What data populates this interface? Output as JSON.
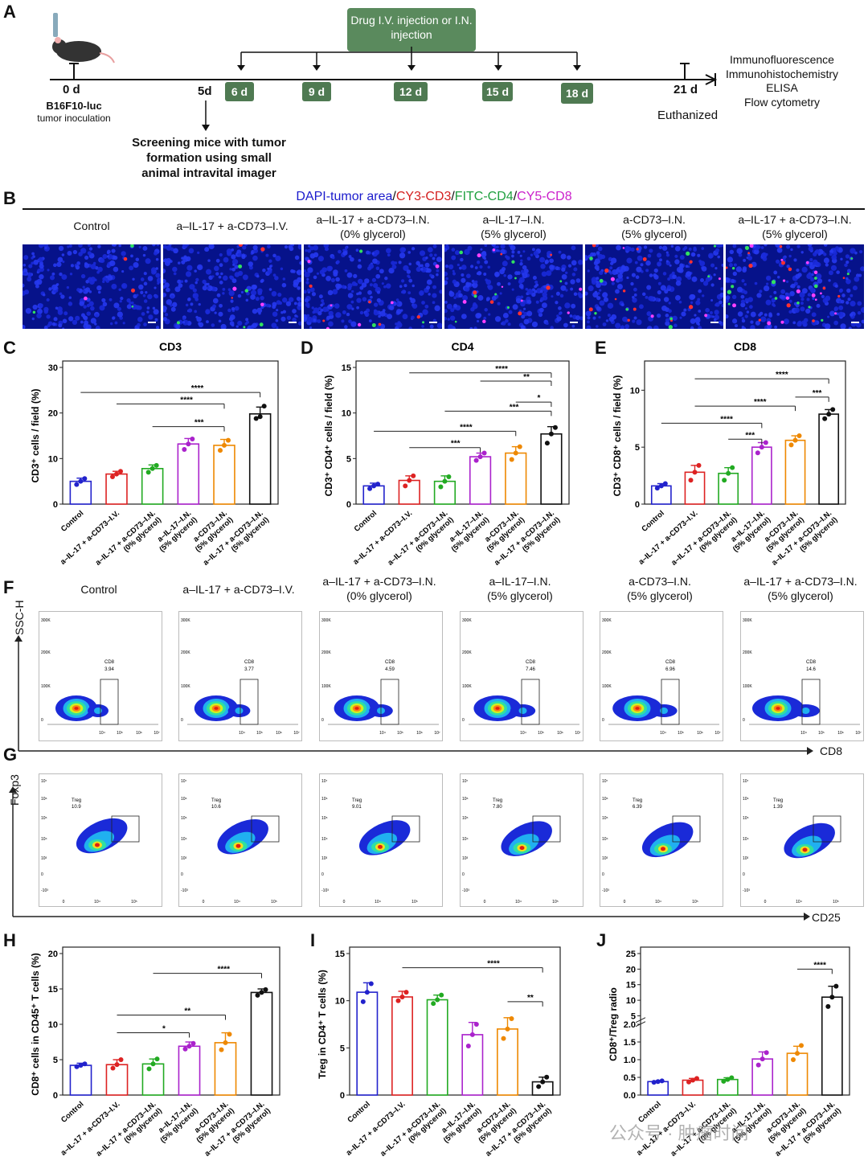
{
  "panels": {
    "A": "A",
    "B": "B",
    "C": "C",
    "D": "D",
    "E": "E",
    "F": "F",
    "G": "G",
    "H": "H",
    "I": "I",
    "J": "J"
  },
  "timeline": {
    "drug_box": "Drug I.V. injection or I.N. injection",
    "d0": "0 d",
    "d0_sub1": "B16F10-luc",
    "d0_sub2": "tumor inoculation",
    "d5": "5d",
    "screen1": "Screening mice with tumor",
    "screen2": "formation using small",
    "screen3": "animal intravital imager",
    "days": [
      "6 d",
      "9 d",
      "12 d",
      "15 d",
      "18 d"
    ],
    "d21": "21 d",
    "euth": "Euthanized",
    "assays": [
      "Immunofluorescence",
      "Immunohistochemistry",
      "ELISA",
      "Flow cytometry"
    ]
  },
  "stain_legend": {
    "dapi": "DAPI-tumor area",
    "sep": "/",
    "cy3": "CY3-CD3",
    "fitc": "FITC-CD4",
    "cy5": "CY5-CD8",
    "c_dapi": "#1a1acc",
    "c_cy3": "#d42020",
    "c_fitc": "#20a040",
    "c_cy5": "#cc22cc"
  },
  "groups_two_line": [
    [
      "Control",
      ""
    ],
    [
      "a–IL-17 + a-CD73–I.V.",
      ""
    ],
    [
      "a–IL-17 + a-CD73–I.N.",
      "(0% glycerol)"
    ],
    [
      "a–IL-17–I.N.",
      "(5% glycerol)"
    ],
    [
      "a-CD73–I.N.",
      "(5% glycerol)"
    ],
    [
      "a–IL-17 + a-CD73–I.N.",
      "(5% glycerol)"
    ]
  ],
  "group_colors": [
    "#2222cc",
    "#dd2222",
    "#22aa22",
    "#aa22cc",
    "#ee8800",
    "#111111"
  ],
  "tick_groups": [
    [
      "Control",
      ""
    ],
    [
      "a–IL-17 + a-CD73–I.V.",
      ""
    ],
    [
      "a–IL-17 + a-CD73–I.N.",
      "(0% glycerol)"
    ],
    [
      "a–IL-17–I.N.",
      "(5% glycerol)"
    ],
    [
      "a-CD73–I.N.",
      "(5% glycerol)"
    ],
    [
      "a–IL-17 + a-CD73–I.N.",
      "(5% glycerol)"
    ]
  ],
  "flow_cd8": {
    "ylabel": "SSC-H",
    "xlabel": "CD8",
    "gate": "CD8",
    "values": [
      "3.94",
      "3.77",
      "4.59",
      "7.46",
      "6.96",
      "14.6"
    ],
    "yticks": [
      "300K",
      "200K",
      "100K",
      "0"
    ],
    "xticks": [
      "10⁴",
      "10⁵",
      "10⁶",
      "10⁷"
    ]
  },
  "flow_treg": {
    "ylabel": "Foxp3",
    "xlabel": "CD25",
    "gate": "Treg",
    "values": [
      "10.9",
      "10.6",
      "9.01",
      "7.80",
      "6.39",
      "1.39"
    ],
    "yticks": [
      "10⁷",
      "10⁶",
      "10⁵",
      "10⁴",
      "10³",
      "0",
      "-10³"
    ],
    "xticks": [
      "0",
      "10⁴",
      "10⁵"
    ]
  },
  "chart_data": [
    {
      "panel": "C",
      "type": "bar",
      "title": "CD3",
      "ylabel": "CD3⁺ cells / field (%)",
      "ylim": [
        0,
        30
      ],
      "yticks": [
        0,
        10,
        20,
        30
      ],
      "values": [
        5.0,
        6.6,
        7.8,
        13.2,
        12.9,
        19.8
      ],
      "errors": [
        0.7,
        0.6,
        0.8,
        1.2,
        1.3,
        1.5
      ],
      "points": [
        [
          4.3,
          5.0,
          5.6
        ],
        [
          6.0,
          6.6,
          7.2
        ],
        [
          7.0,
          7.8,
          8.5
        ],
        [
          12.0,
          13.2,
          14.3
        ],
        [
          11.8,
          12.9,
          14.0
        ],
        [
          18.8,
          19.2,
          21.5
        ]
      ],
      "sig": [
        "****",
        "****",
        "***"
      ]
    },
    {
      "panel": "D",
      "type": "bar",
      "title": "CD4",
      "ylabel": "CD3⁺ CD4⁺ cells / field (%)",
      "ylim": [
        0,
        15
      ],
      "yticks": [
        0,
        5,
        10,
        15
      ],
      "values": [
        2.0,
        2.6,
        2.5,
        5.2,
        5.6,
        7.7
      ],
      "errors": [
        0.3,
        0.5,
        0.6,
        0.4,
        0.7,
        0.8
      ],
      "points": [
        [
          1.7,
          2.0,
          2.2
        ],
        [
          2.0,
          2.6,
          3.1
        ],
        [
          1.9,
          2.5,
          3.0
        ],
        [
          4.8,
          5.2,
          5.6
        ],
        [
          4.9,
          5.6,
          6.3
        ],
        [
          6.7,
          7.7,
          8.4
        ]
      ],
      "sig": [
        "****",
        "**",
        "*",
        "***",
        "****",
        "***"
      ]
    },
    {
      "panel": "E",
      "type": "bar",
      "title": "CD8",
      "ylabel": "CD3⁺ CD8⁺ cells / field (%)",
      "ylim": [
        0,
        12
      ],
      "yticks": [
        0,
        5,
        10
      ],
      "values": [
        1.6,
        2.8,
        2.7,
        5.0,
        5.6,
        7.9
      ],
      "errors": [
        0.2,
        0.6,
        0.5,
        0.4,
        0.4,
        0.4
      ],
      "points": [
        [
          1.4,
          1.6,
          1.8
        ],
        [
          2.1,
          2.8,
          3.4
        ],
        [
          2.1,
          2.7,
          3.2
        ],
        [
          4.5,
          5.0,
          5.4
        ],
        [
          5.2,
          5.6,
          6.0
        ],
        [
          7.5,
          7.9,
          8.3
        ]
      ],
      "sig": [
        "****",
        "***",
        "****",
        "****",
        "***"
      ]
    },
    {
      "panel": "H",
      "type": "bar",
      "ylabel": "CD8⁺ cells in CD45⁺ T cells (%)",
      "ylim": [
        0,
        20
      ],
      "yticks": [
        0,
        5,
        10,
        15,
        20
      ],
      "values": [
        4.2,
        4.3,
        4.4,
        6.9,
        7.4,
        14.5
      ],
      "errors": [
        0.3,
        0.7,
        0.7,
        0.6,
        1.4,
        0.5
      ],
      "points": [
        [
          4.0,
          4.2,
          4.4
        ],
        [
          3.8,
          4.3,
          5.0
        ],
        [
          3.7,
          4.4,
          5.1
        ],
        [
          6.5,
          6.9,
          7.3
        ],
        [
          6.4,
          7.4,
          8.6
        ],
        [
          14.1,
          14.5,
          14.9
        ]
      ],
      "sig": [
        "****",
        "**",
        "*"
      ]
    },
    {
      "panel": "I",
      "type": "bar",
      "ylabel": "Treg in CD4⁺ T cells (%)",
      "ylim": [
        0,
        15
      ],
      "yticks": [
        0,
        5,
        10,
        15
      ],
      "values": [
        10.9,
        10.4,
        10.1,
        6.4,
        7.0,
        1.4
      ],
      "errors": [
        1.0,
        0.6,
        0.5,
        1.3,
        1.2,
        0.5
      ],
      "points": [
        [
          9.9,
          10.9,
          11.8
        ],
        [
          10.0,
          10.4,
          10.9
        ],
        [
          9.7,
          10.1,
          10.6
        ],
        [
          5.2,
          6.4,
          7.5
        ],
        [
          6.0,
          7.0,
          8.1
        ],
        [
          0.9,
          1.4,
          1.9
        ]
      ],
      "sig": [
        "****",
        "**"
      ]
    },
    {
      "panel": "J",
      "type": "bar",
      "ylabel": "CD8⁺/Treg radio",
      "ylim": [
        0,
        25
      ],
      "yticks": [
        "0.0",
        "0.5",
        "1.0",
        "1.5",
        "2.0",
        "5",
        "10",
        "15",
        "20",
        "25"
      ],
      "values": [
        0.38,
        0.42,
        0.44,
        1.02,
        1.18,
        11.0
      ],
      "errors": [
        0.02,
        0.05,
        0.05,
        0.2,
        0.2,
        3.5
      ],
      "points": [
        [
          0.36,
          0.38,
          0.4
        ],
        [
          0.37,
          0.42,
          0.47
        ],
        [
          0.39,
          0.44,
          0.49
        ],
        [
          0.85,
          1.02,
          1.2
        ],
        [
          1.0,
          1.18,
          1.4
        ],
        [
          8.0,
          11.0,
          14.5
        ]
      ],
      "sig": [
        "****"
      ]
    }
  ],
  "watermark": "公众号 · 肿瘤时间"
}
